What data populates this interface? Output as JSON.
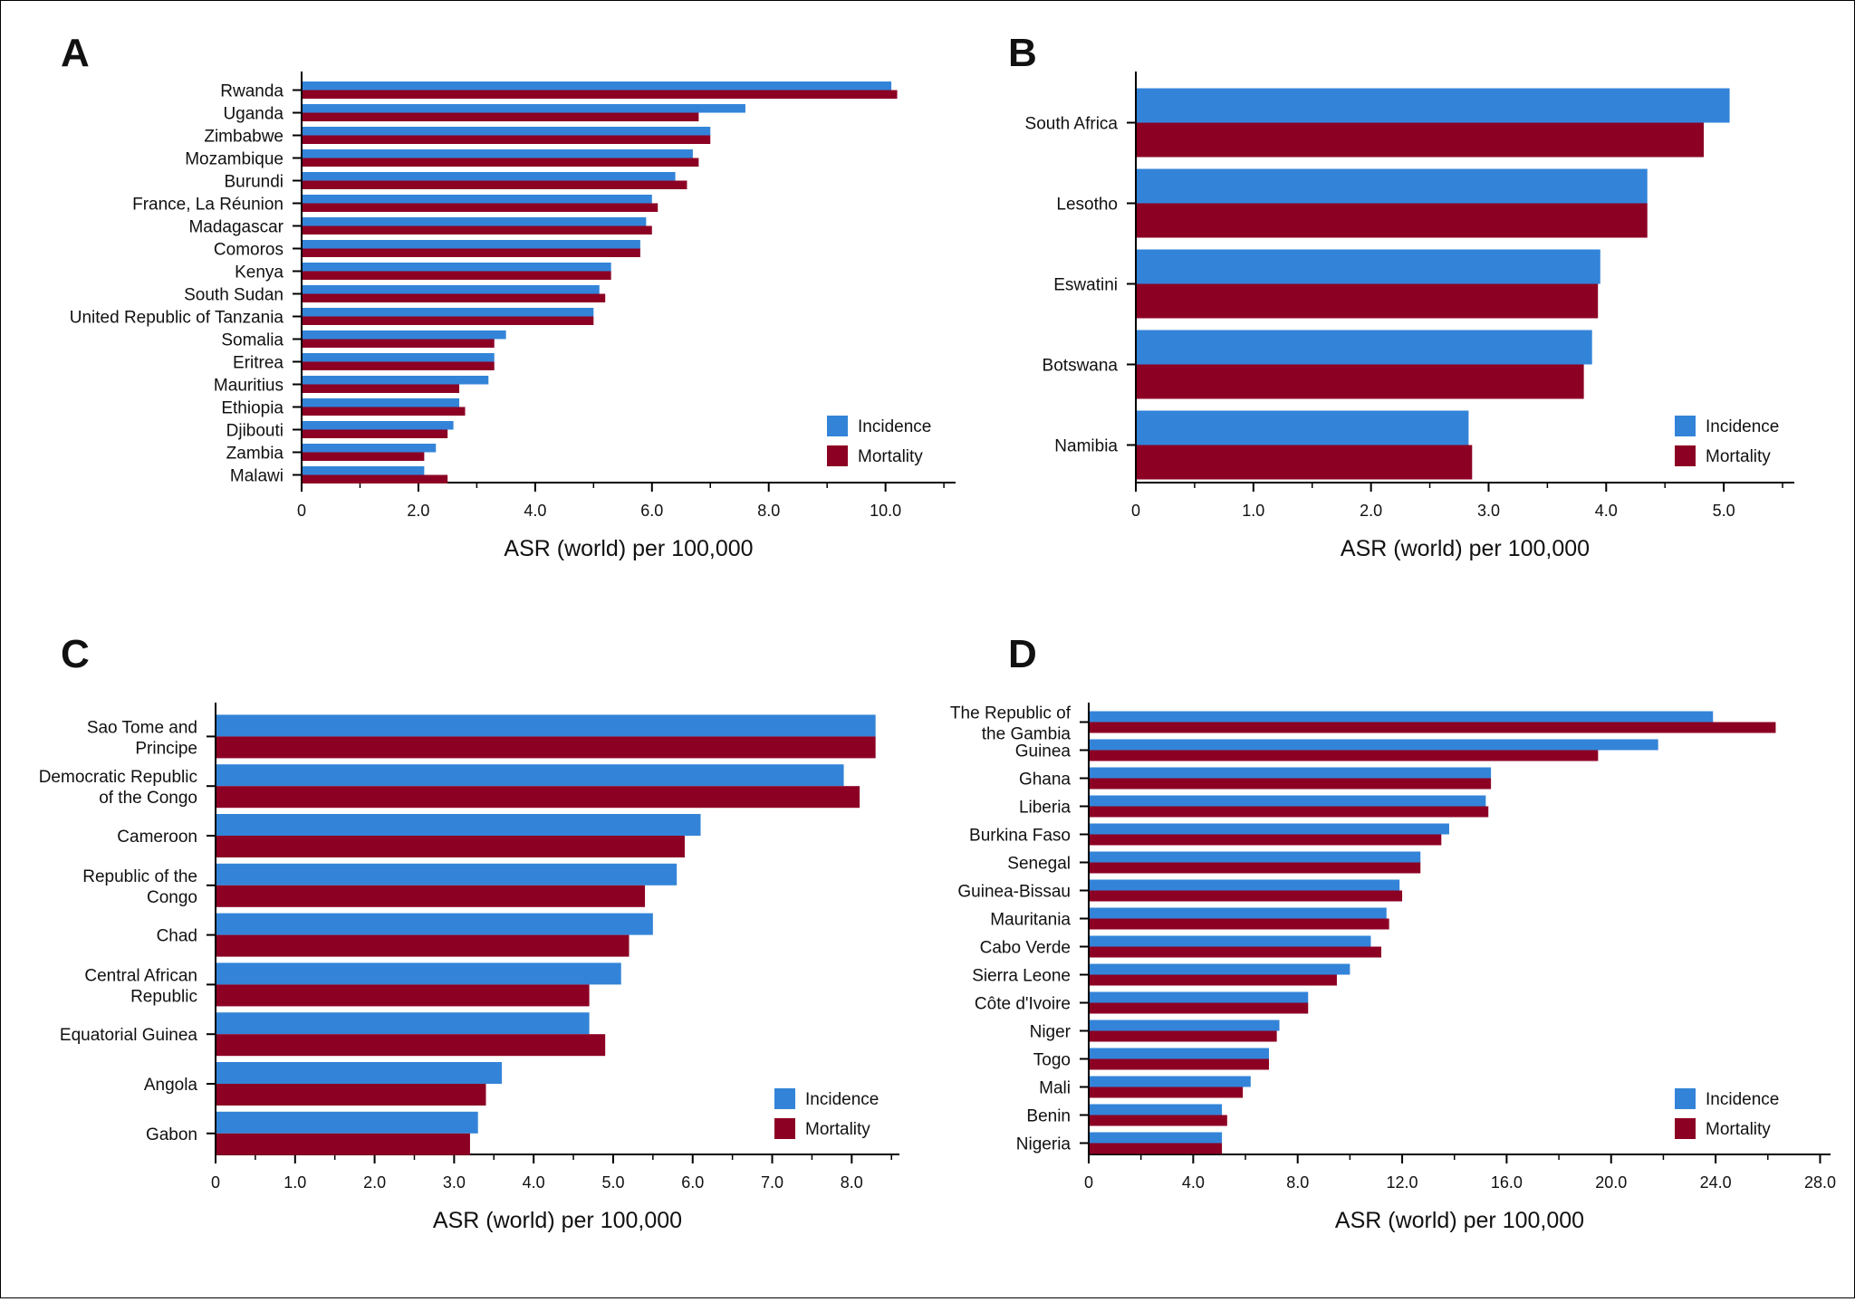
{
  "colors": {
    "incidence": "#3384d8",
    "mortality": "#8c0024"
  },
  "legend": {
    "incidence": "Incidence",
    "mortality": "Mortality"
  },
  "chart_data": [
    {
      "id": "A",
      "type": "bar",
      "orientation": "horizontal",
      "panel_label": "A",
      "xlabel": "ASR (world) per 100,000",
      "xlim": [
        0,
        11.2
      ],
      "ticks": [
        0,
        2,
        4,
        6,
        8,
        10
      ],
      "tick_labels": [
        "0",
        "2.0",
        "4.0",
        "6.0",
        "8.0",
        "10.0"
      ],
      "legend_position": "bottom-right",
      "categories": [
        [
          "Rwanda"
        ],
        [
          "Uganda"
        ],
        [
          "Zimbabwe"
        ],
        [
          "Mozambique"
        ],
        [
          "Burundi"
        ],
        [
          "France, La Réunion"
        ],
        [
          "Madagascar"
        ],
        [
          "Comoros"
        ],
        [
          "Kenya"
        ],
        [
          "South Sudan"
        ],
        [
          "United Republic of Tanzania"
        ],
        [
          "Somalia"
        ],
        [
          "Eritrea"
        ],
        [
          "Mauritius"
        ],
        [
          "Ethiopia"
        ],
        [
          "Djibouti"
        ],
        [
          "Zambia"
        ],
        [
          "Malawi"
        ]
      ],
      "series": [
        {
          "name": "Incidence",
          "values": [
            10.1,
            7.6,
            7.0,
            6.7,
            6.4,
            6.0,
            5.9,
            5.8,
            5.3,
            5.1,
            5.0,
            3.5,
            3.3,
            3.2,
            2.7,
            2.6,
            2.3,
            2.1
          ]
        },
        {
          "name": "Mortality",
          "values": [
            10.2,
            6.8,
            7.0,
            6.8,
            6.6,
            6.1,
            6.0,
            5.8,
            5.3,
            5.2,
            5.0,
            3.3,
            3.3,
            2.7,
            2.8,
            2.5,
            2.1,
            2.5
          ]
        }
      ]
    },
    {
      "id": "B",
      "type": "bar",
      "orientation": "horizontal",
      "panel_label": "B",
      "xlabel": "ASR (world) per 100,000",
      "xlim": [
        0,
        5.6
      ],
      "ticks": [
        0,
        1,
        2,
        3,
        4,
        5
      ],
      "tick_labels": [
        "0",
        "1.0",
        "2.0",
        "3.0",
        "4.0",
        "5.0"
      ],
      "legend_position": "bottom-right",
      "categories": [
        [
          "South Africa"
        ],
        [
          "Lesotho"
        ],
        [
          "Eswatini"
        ],
        [
          "Botswana"
        ],
        [
          "Namibia"
        ]
      ],
      "series": [
        {
          "name": "Incidence",
          "values": [
            5.05,
            4.35,
            3.95,
            3.88,
            2.83
          ]
        },
        {
          "name": "Mortality",
          "values": [
            4.83,
            4.35,
            3.93,
            3.81,
            2.86
          ]
        }
      ]
    },
    {
      "id": "C",
      "type": "bar",
      "orientation": "horizontal",
      "panel_label": "C",
      "xlabel": "ASR (world) per 100,000",
      "xlim": [
        0,
        8.6
      ],
      "ticks": [
        0,
        1,
        2,
        3,
        4,
        5,
        6,
        7,
        8
      ],
      "tick_labels": [
        "0",
        "1.0",
        "2.0",
        "3.0",
        "4.0",
        "5.0",
        "6.0",
        "7.0",
        "8.0"
      ],
      "legend_position": "bottom-right",
      "categories": [
        [
          "Sao Tome and",
          "Principe"
        ],
        [
          "Democratic Republic",
          "of the Congo"
        ],
        [
          "Cameroon"
        ],
        [
          "Republic of the",
          "Congo"
        ],
        [
          "Chad"
        ],
        [
          "Central African",
          "Republic"
        ],
        [
          "Equatorial Guinea"
        ],
        [
          "Angola"
        ],
        [
          "Gabon"
        ]
      ],
      "series": [
        {
          "name": "Incidence",
          "values": [
            8.3,
            7.9,
            6.1,
            5.8,
            5.5,
            5.1,
            4.7,
            3.6,
            3.3
          ]
        },
        {
          "name": "Mortality",
          "values": [
            8.3,
            8.1,
            5.9,
            5.4,
            5.2,
            4.7,
            4.9,
            3.4,
            3.2
          ]
        }
      ]
    },
    {
      "id": "D",
      "type": "bar",
      "orientation": "horizontal",
      "panel_label": "D",
      "xlabel": "ASR (world) per 100,000",
      "xlim": [
        0,
        28.4
      ],
      "ticks": [
        0,
        4,
        8,
        12,
        16,
        20,
        24,
        28
      ],
      "tick_labels": [
        "0",
        "4.0",
        "8.0",
        "12.0",
        "16.0",
        "20.0",
        "24.0",
        "28.0"
      ],
      "legend_position": "bottom-right",
      "categories": [
        [
          "The Republic of",
          "the Gambia"
        ],
        [
          "Guinea"
        ],
        [
          "Ghana"
        ],
        [
          "Liberia"
        ],
        [
          "Burkina Faso"
        ],
        [
          "Senegal"
        ],
        [
          "Guinea-Bissau"
        ],
        [
          "Mauritania"
        ],
        [
          "Cabo Verde"
        ],
        [
          "Sierra Leone"
        ],
        [
          "Côte d'Ivoire"
        ],
        [
          "Niger"
        ],
        [
          "Togo"
        ],
        [
          "Mali"
        ],
        [
          "Benin"
        ],
        [
          "Nigeria"
        ]
      ],
      "series": [
        {
          "name": "Incidence",
          "values": [
            23.9,
            21.8,
            15.4,
            15.2,
            13.8,
            12.7,
            11.9,
            11.4,
            10.8,
            10.0,
            8.4,
            7.3,
            6.9,
            6.2,
            5.1,
            5.1
          ]
        },
        {
          "name": "Mortality",
          "values": [
            26.3,
            19.5,
            15.4,
            15.3,
            13.5,
            12.7,
            12.0,
            11.5,
            11.2,
            9.5,
            8.4,
            7.2,
            6.9,
            5.9,
            5.3,
            5.1
          ]
        }
      ]
    }
  ]
}
